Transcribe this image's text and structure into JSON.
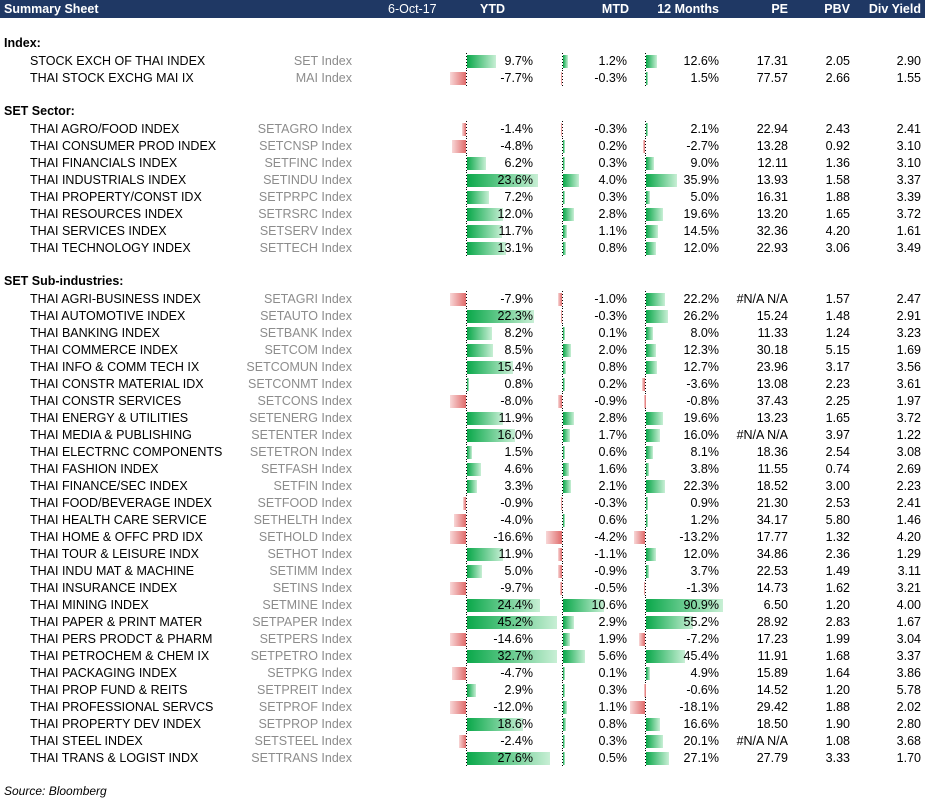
{
  "header": {
    "title": "Summary Sheet",
    "date": "6-Oct-17",
    "ytd": "YTD",
    "mtd": "MTD",
    "m12": "12 Months",
    "pe": "PE",
    "pbv": "PBV",
    "div": "Div Yield"
  },
  "sections": [
    {
      "title": "Index:",
      "rows": [
        {
          "name": "STOCK EXCH OF THAI INDEX",
          "ticker": "SET Index",
          "ytd": "9.7%",
          "mtd": "1.2%",
          "m12": "12.6%",
          "pe": "17.31",
          "pbv": "2.05",
          "div": "2.90",
          "ytd_v": 9.7,
          "mtd_v": 1.2,
          "m12_v": 12.6
        },
        {
          "name": "THAI STOCK EXCHG MAI IX",
          "ticker": "MAI Index",
          "ytd": "-7.7%",
          "mtd": "-0.3%",
          "m12": "1.5%",
          "pe": "77.57",
          "pbv": "2.66",
          "div": "1.55",
          "ytd_v": -7.7,
          "mtd_v": -0.3,
          "m12_v": 1.5
        }
      ]
    },
    {
      "title": "SET Sector:",
      "rows": [
        {
          "name": "THAI AGRO/FOOD INDEX",
          "ticker": "SETAGRO Index",
          "ytd": "-1.4%",
          "mtd": "-0.3%",
          "m12": "2.1%",
          "pe": "22.94",
          "pbv": "2.43",
          "div": "2.41",
          "ytd_v": -1.4,
          "mtd_v": -0.3,
          "m12_v": 2.1
        },
        {
          "name": "THAI CONSUMER PROD INDEX",
          "ticker": "SETCNSP Index",
          "ytd": "-4.8%",
          "mtd": "0.2%",
          "m12": "-2.7%",
          "pe": "13.28",
          "pbv": "0.92",
          "div": "3.10",
          "ytd_v": -4.8,
          "mtd_v": 0.2,
          "m12_v": -2.7
        },
        {
          "name": "THAI FINANCIALS INDEX",
          "ticker": "SETFINC Index",
          "ytd": "6.2%",
          "mtd": "0.3%",
          "m12": "9.0%",
          "pe": "12.11",
          "pbv": "1.36",
          "div": "3.10",
          "ytd_v": 6.2,
          "mtd_v": 0.3,
          "m12_v": 9.0
        },
        {
          "name": "THAI INDUSTRIALS INDEX",
          "ticker": "SETINDU Index",
          "ytd": "23.6%",
          "mtd": "4.0%",
          "m12": "35.9%",
          "pe": "13.93",
          "pbv": "1.58",
          "div": "3.37",
          "ytd_v": 23.6,
          "mtd_v": 4.0,
          "m12_v": 35.9
        },
        {
          "name": "THAI PROPERTY/CONST IDX",
          "ticker": "SETPRPC Index",
          "ytd": "7.2%",
          "mtd": "0.3%",
          "m12": "5.0%",
          "pe": "16.31",
          "pbv": "1.88",
          "div": "3.39",
          "ytd_v": 7.2,
          "mtd_v": 0.3,
          "m12_v": 5.0
        },
        {
          "name": "THAI RESOURCES INDEX",
          "ticker": "SETRSRC Index",
          "ytd": "12.0%",
          "mtd": "2.8%",
          "m12": "19.6%",
          "pe": "13.20",
          "pbv": "1.65",
          "div": "3.72",
          "ytd_v": 12.0,
          "mtd_v": 2.8,
          "m12_v": 19.6
        },
        {
          "name": "THAI SERVICES INDEX",
          "ticker": "SETSERV Index",
          "ytd": "11.7%",
          "mtd": "1.1%",
          "m12": "14.5%",
          "pe": "32.36",
          "pbv": "4.20",
          "div": "1.61",
          "ytd_v": 11.7,
          "mtd_v": 1.1,
          "m12_v": 14.5
        },
        {
          "name": "THAI TECHNOLOGY INDEX",
          "ticker": "SETTECH Index",
          "ytd": "13.1%",
          "mtd": "0.8%",
          "m12": "12.0%",
          "pe": "22.93",
          "pbv": "3.06",
          "div": "3.49",
          "ytd_v": 13.1,
          "mtd_v": 0.8,
          "m12_v": 12.0
        }
      ]
    },
    {
      "title": "SET Sub-industries:",
      "rows": [
        {
          "name": "THAI AGRI-BUSINESS INDEX",
          "ticker": "SETAGRI Index",
          "ytd": "-7.9%",
          "mtd": "-1.0%",
          "m12": "22.2%",
          "pe": "#N/A N/A",
          "pbv": "1.57",
          "div": "2.47",
          "ytd_v": -7.9,
          "mtd_v": -1.0,
          "m12_v": 22.2
        },
        {
          "name": "THAI AUTOMOTIVE INDEX",
          "ticker": "SETAUTO Index",
          "ytd": "22.3%",
          "mtd": "-0.3%",
          "m12": "26.2%",
          "pe": "15.24",
          "pbv": "1.48",
          "div": "2.91",
          "ytd_v": 22.3,
          "mtd_v": -0.3,
          "m12_v": 26.2
        },
        {
          "name": "THAI BANKING INDEX",
          "ticker": "SETBANK Index",
          "ytd": "8.2%",
          "mtd": "0.1%",
          "m12": "8.0%",
          "pe": "11.33",
          "pbv": "1.24",
          "div": "3.23",
          "ytd_v": 8.2,
          "mtd_v": 0.1,
          "m12_v": 8.0
        },
        {
          "name": "THAI COMMERCE INDEX",
          "ticker": "SETCOM Index",
          "ytd": "8.5%",
          "mtd": "2.0%",
          "m12": "12.3%",
          "pe": "30.18",
          "pbv": "5.15",
          "div": "1.69",
          "ytd_v": 8.5,
          "mtd_v": 2.0,
          "m12_v": 12.3
        },
        {
          "name": "THAI INFO & COMM TECH IX",
          "ticker": "SETCOMUN Index",
          "ytd": "15.4%",
          "mtd": "0.8%",
          "m12": "12.7%",
          "pe": "23.96",
          "pbv": "3.17",
          "div": "3.56",
          "ytd_v": 15.4,
          "mtd_v": 0.8,
          "m12_v": 12.7
        },
        {
          "name": "THAI CONSTR MATERIAL IDX",
          "ticker": "SETCONMT Index",
          "ytd": "0.8%",
          "mtd": "0.2%",
          "m12": "-3.6%",
          "pe": "13.08",
          "pbv": "2.23",
          "div": "3.61",
          "ytd_v": 0.8,
          "mtd_v": 0.2,
          "m12_v": -3.6
        },
        {
          "name": "THAI CONSTR SERVICES",
          "ticker": "SETCONS Index",
          "ytd": "-8.0%",
          "mtd": "-0.9%",
          "m12": "-0.8%",
          "pe": "37.43",
          "pbv": "2.25",
          "div": "1.97",
          "ytd_v": -8.0,
          "mtd_v": -0.9,
          "m12_v": -0.8
        },
        {
          "name": "THAI ENERGY & UTILITIES",
          "ticker": "SETENERG Index",
          "ytd": "11.9%",
          "mtd": "2.8%",
          "m12": "19.6%",
          "pe": "13.23",
          "pbv": "1.65",
          "div": "3.72",
          "ytd_v": 11.9,
          "mtd_v": 2.8,
          "m12_v": 19.6
        },
        {
          "name": "THAI MEDIA & PUBLISHING",
          "ticker": "SETENTER Index",
          "ytd": "16.0%",
          "mtd": "1.7%",
          "m12": "16.0%",
          "pe": "#N/A N/A",
          "pbv": "3.97",
          "div": "1.22",
          "ytd_v": 16.0,
          "mtd_v": 1.7,
          "m12_v": 16.0
        },
        {
          "name": "THAI ELECTRNC COMPONENTS",
          "ticker": "SETETRON Index",
          "ytd": "1.5%",
          "mtd": "0.6%",
          "m12": "8.1%",
          "pe": "18.36",
          "pbv": "2.54",
          "div": "3.08",
          "ytd_v": 1.5,
          "mtd_v": 0.6,
          "m12_v": 8.1
        },
        {
          "name": "THAI FASHION INDEX",
          "ticker": "SETFASH Index",
          "ytd": "4.6%",
          "mtd": "1.6%",
          "m12": "3.8%",
          "pe": "11.55",
          "pbv": "0.74",
          "div": "2.69",
          "ytd_v": 4.6,
          "mtd_v": 1.6,
          "m12_v": 3.8
        },
        {
          "name": "THAI FINANCE/SEC INDEX",
          "ticker": "SETFIN Index",
          "ytd": "3.3%",
          "mtd": "2.1%",
          "m12": "22.3%",
          "pe": "18.52",
          "pbv": "3.00",
          "div": "2.23",
          "ytd_v": 3.3,
          "mtd_v": 2.1,
          "m12_v": 22.3
        },
        {
          "name": "THAI FOOD/BEVERAGE INDEX",
          "ticker": "SETFOOD Index",
          "ytd": "-0.9%",
          "mtd": "-0.3%",
          "m12": "0.9%",
          "pe": "21.30",
          "pbv": "2.53",
          "div": "2.41",
          "ytd_v": -0.9,
          "mtd_v": -0.3,
          "m12_v": 0.9
        },
        {
          "name": "THAI HEALTH CARE SERVICE",
          "ticker": "SETHELTH Index",
          "ytd": "-4.0%",
          "mtd": "0.6%",
          "m12": "1.2%",
          "pe": "34.17",
          "pbv": "5.80",
          "div": "1.46",
          "ytd_v": -4.0,
          "mtd_v": 0.6,
          "m12_v": 1.2
        },
        {
          "name": "THAI HOME & OFFC PRD IDX",
          "ticker": "SETHOLD Index",
          "ytd": "-16.6%",
          "mtd": "-4.2%",
          "m12": "-13.2%",
          "pe": "17.77",
          "pbv": "1.32",
          "div": "4.20",
          "ytd_v": -16.6,
          "mtd_v": -4.2,
          "m12_v": -13.2
        },
        {
          "name": "THAI TOUR & LEISURE INDX",
          "ticker": "SETHOT Index",
          "ytd": "11.9%",
          "mtd": "-1.1%",
          "m12": "12.0%",
          "pe": "34.86",
          "pbv": "2.36",
          "div": "1.29",
          "ytd_v": 11.9,
          "mtd_v": -1.1,
          "m12_v": 12.0
        },
        {
          "name": "THAI INDU MAT & MACHINE",
          "ticker": "SETIMM Index",
          "ytd": "5.0%",
          "mtd": "-0.9%",
          "m12": "3.7%",
          "pe": "22.53",
          "pbv": "1.49",
          "div": "3.11",
          "ytd_v": 5.0,
          "mtd_v": -0.9,
          "m12_v": 3.7
        },
        {
          "name": "THAI INSURANCE INDEX",
          "ticker": "SETINS Index",
          "ytd": "-9.7%",
          "mtd": "-0.5%",
          "m12": "-1.3%",
          "pe": "14.73",
          "pbv": "1.62",
          "div": "3.21",
          "ytd_v": -9.7,
          "mtd_v": -0.5,
          "m12_v": -1.3
        },
        {
          "name": "THAI MINING INDEX",
          "ticker": "SETMINE Index",
          "ytd": "24.4%",
          "mtd": "10.6%",
          "m12": "90.9%",
          "pe": "6.50",
          "pbv": "1.20",
          "div": "4.00",
          "ytd_v": 24.4,
          "mtd_v": 10.6,
          "m12_v": 90.9
        },
        {
          "name": "THAI PAPER & PRINT MATER",
          "ticker": "SETPAPER Index",
          "ytd": "45.2%",
          "mtd": "2.9%",
          "m12": "55.2%",
          "pe": "28.92",
          "pbv": "2.83",
          "div": "1.67",
          "ytd_v": 45.2,
          "mtd_v": 2.9,
          "m12_v": 55.2
        },
        {
          "name": "THAI PERS PRODCT & PHARM",
          "ticker": "SETPERS Index",
          "ytd": "-14.6%",
          "mtd": "1.9%",
          "m12": "-7.2%",
          "pe": "17.23",
          "pbv": "1.99",
          "div": "3.04",
          "ytd_v": -14.6,
          "mtd_v": 1.9,
          "m12_v": -7.2
        },
        {
          "name": "THAI PETROCHEM & CHEM IX",
          "ticker": "SETPETRO Index",
          "ytd": "32.7%",
          "mtd": "5.6%",
          "m12": "45.4%",
          "pe": "11.91",
          "pbv": "1.68",
          "div": "3.37",
          "ytd_v": 32.7,
          "mtd_v": 5.6,
          "m12_v": 45.4
        },
        {
          "name": "THAI PACKAGING INDEX",
          "ticker": "SETPKG Index",
          "ytd": "-4.7%",
          "mtd": "0.1%",
          "m12": "4.9%",
          "pe": "15.89",
          "pbv": "1.64",
          "div": "3.86",
          "ytd_v": -4.7,
          "mtd_v": 0.1,
          "m12_v": 4.9
        },
        {
          "name": "THAI PROP FUND & REITS",
          "ticker": "SETPREIT Index",
          "ytd": "2.9%",
          "mtd": "0.3%",
          "m12": "-0.6%",
          "pe": "14.52",
          "pbv": "1.20",
          "div": "5.78",
          "ytd_v": 2.9,
          "mtd_v": 0.3,
          "m12_v": -0.6
        },
        {
          "name": "THAI PROFESSIONAL SERVCS",
          "ticker": "SETPROF Index",
          "ytd": "-12.0%",
          "mtd": "1.1%",
          "m12": "-18.1%",
          "pe": "29.42",
          "pbv": "1.88",
          "div": "2.02",
          "ytd_v": -12.0,
          "mtd_v": 1.1,
          "m12_v": -18.1
        },
        {
          "name": "THAI PROPERTY DEV INDEX",
          "ticker": "SETPROP Index",
          "ytd": "18.6%",
          "mtd": "0.8%",
          "m12": "16.6%",
          "pe": "18.50",
          "pbv": "1.90",
          "div": "2.80",
          "ytd_v": 18.6,
          "mtd_v": 0.8,
          "m12_v": 16.6
        },
        {
          "name": "THAI STEEL INDEX",
          "ticker": "SETSTEEL Index",
          "ytd": "-2.4%",
          "mtd": "0.3%",
          "m12": "20.1%",
          "pe": "#N/A N/A",
          "pbv": "1.08",
          "div": "3.68",
          "ytd_v": -2.4,
          "mtd_v": 0.3,
          "m12_v": 20.1
        },
        {
          "name": "THAI TRANS & LOGIST INDX",
          "ticker": "SETTRANS Index",
          "ytd": "27.6%",
          "mtd": "0.5%",
          "m12": "27.1%",
          "pe": "27.79",
          "pbv": "3.33",
          "div": "1.70",
          "ytd_v": 27.6,
          "mtd_v": 0.5,
          "m12_v": 27.1
        }
      ]
    }
  ],
  "source": "Source: Bloomberg",
  "colors": {
    "header_bg": "#1f3864",
    "positive_bar": "#0aa84a",
    "negative_bar": "#e06b6b",
    "ticker_text": "#8c8c8c"
  }
}
